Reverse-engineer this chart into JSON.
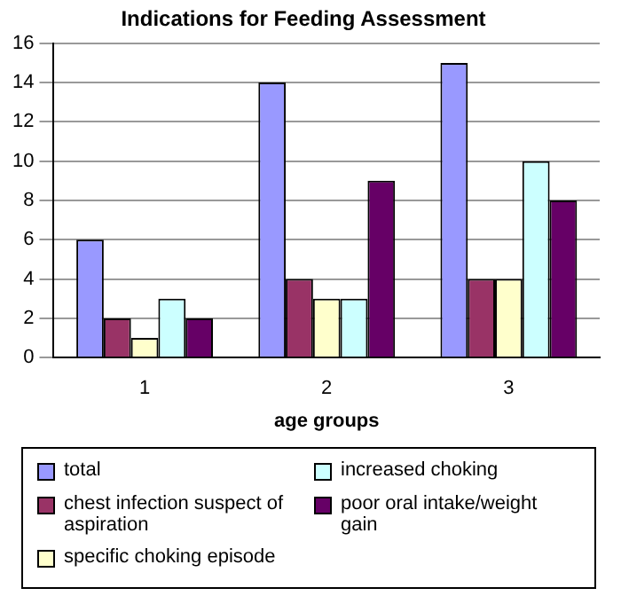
{
  "chart_data": {
    "type": "bar",
    "title": "Indications for Feeding Assessment",
    "xlabel": "age groups",
    "categories": [
      "1",
      "2",
      "3"
    ],
    "series": [
      {
        "name": "total",
        "color": "#9999ff",
        "values": [
          6,
          14,
          15
        ]
      },
      {
        "name": "chest infection suspect of aspiration",
        "color": "#993366",
        "values": [
          2,
          4,
          4
        ]
      },
      {
        "name": "specific choking episode",
        "color": "#ffffcc",
        "values": [
          1,
          3,
          4
        ]
      },
      {
        "name": "increased choking",
        "color": "#ccffff",
        "values": [
          3,
          3,
          10
        ]
      },
      {
        "name": "poor oral intake/weight gain",
        "color": "#660066",
        "values": [
          2,
          9,
          8
        ]
      }
    ],
    "ylim": [
      0,
      16
    ],
    "yticks": [
      0,
      2,
      4,
      6,
      8,
      10,
      12,
      14,
      16
    ],
    "grid": "y",
    "legend": "bottom"
  }
}
